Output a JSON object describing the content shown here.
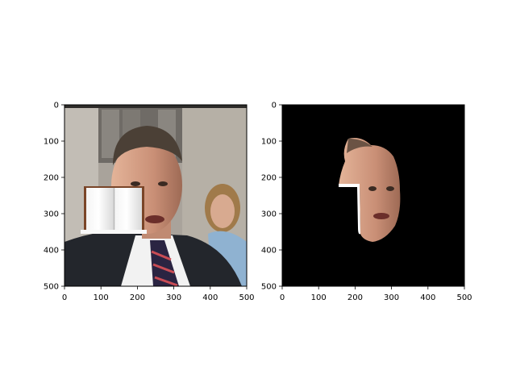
{
  "chart_data": [
    {
      "type": "image",
      "content": "photo: man in dark suit and striped tie, woman behind on right, building doorway background, white open-book icon pasted over lower-left face area",
      "xlim": [
        0,
        500
      ],
      "ylim": [
        500,
        0
      ],
      "xticks": [
        0,
        100,
        200,
        300,
        400,
        500
      ],
      "yticks": [
        0,
        100,
        200,
        300,
        400,
        500
      ],
      "xtick_labels": [
        "0",
        "100",
        "200",
        "300",
        "400",
        "500"
      ],
      "ytick_labels": [
        "0",
        "100",
        "200",
        "300",
        "400",
        "500"
      ]
    },
    {
      "type": "image",
      "content": "segmentation mask output: man's face region isolated on black background",
      "xlim": [
        0,
        500
      ],
      "ylim": [
        500,
        0
      ],
      "xticks": [
        0,
        100,
        200,
        300,
        400,
        500
      ],
      "yticks": [
        0,
        100,
        200,
        300,
        400,
        500
      ],
      "xtick_labels": [
        "0",
        "100",
        "200",
        "300",
        "400",
        "500"
      ],
      "ytick_labels": [
        "0",
        "100",
        "200",
        "300",
        "400",
        "500"
      ]
    }
  ],
  "colors": {
    "background": "#ffffff",
    "mask_background": "#000000",
    "suit": "#23262c",
    "skin": "#c98f76",
    "wall": "#a9a39b"
  }
}
